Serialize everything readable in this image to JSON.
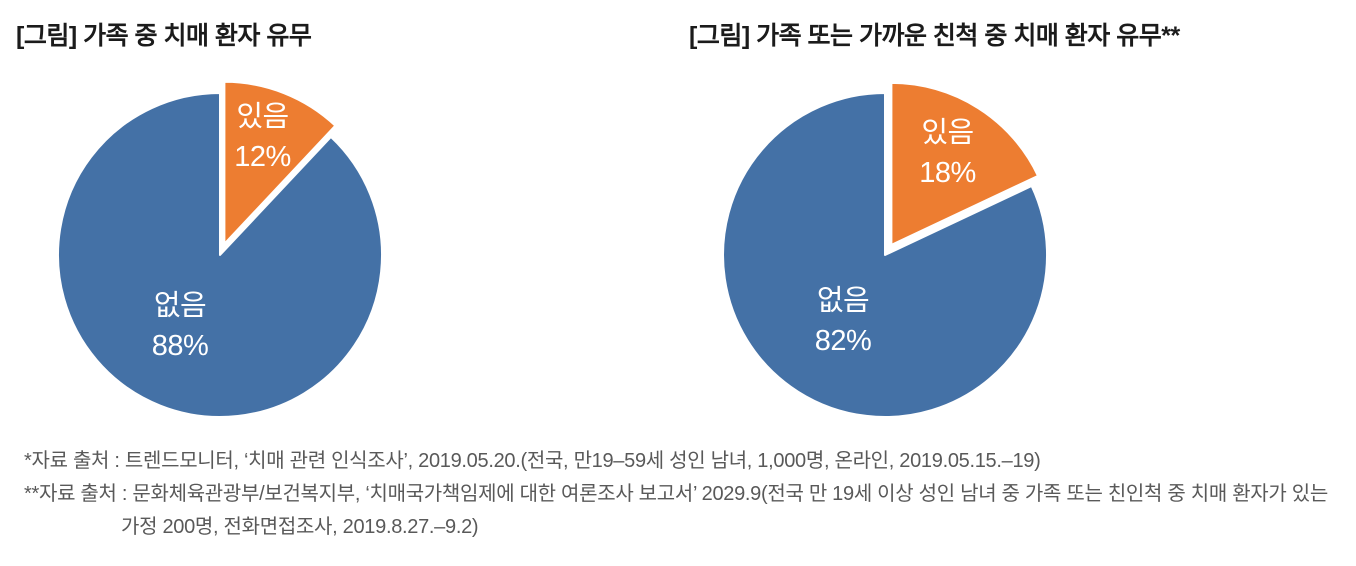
{
  "page": {
    "background": "#ffffff"
  },
  "chart_data": [
    {
      "type": "pie",
      "title": "[그림] 가족 중 치매 환자 유무",
      "labels": [
        "있음",
        "없음"
      ],
      "values": [
        12,
        88
      ],
      "value_labels": [
        "12%",
        "88%"
      ],
      "colors": [
        "#ED7D31",
        "#4471A6"
      ],
      "exploded_slice": "있음",
      "start_angle_deg": 0,
      "legend": "none",
      "data_label_color": "#ffffff"
    },
    {
      "type": "pie",
      "title": "[그림] 가족 또는 가까운 친척 중 치매 환자 유무**",
      "labels": [
        "있음",
        "없음"
      ],
      "values": [
        18,
        82
      ],
      "value_labels": [
        "18%",
        "82%"
      ],
      "colors": [
        "#ED7D31",
        "#4471A6"
      ],
      "exploded_slice": "있음",
      "start_angle_deg": 0,
      "legend": "none",
      "data_label_color": "#ffffff"
    }
  ],
  "footnotes": {
    "color": "#595959",
    "lines": [
      "*자료 출처 : 트렌드모니터, ‘치매 관련 인식조사’, 2019.05.20.(전국, 만19–59세 성인 남녀, 1,000명, 온라인, 2019.05.15.–19)",
      "**자료 출처 : 문화체육관광부/보건복지부, ‘치매국가책임제에 대한 여론조사 보고서’ 2029.9(전국 만 19세 이상 성인 남녀 중 가족 또는 친인척 중 치매 환자가 있는",
      "가정 200명, 전화면접조사, 2019.8.27.–9.2)"
    ]
  }
}
